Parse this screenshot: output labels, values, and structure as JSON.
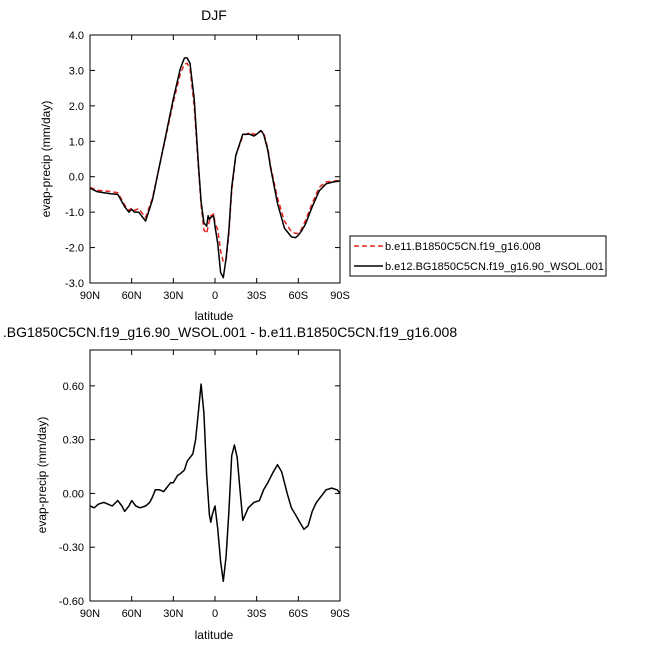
{
  "chart_data": [
    {
      "type": "line",
      "title": "DJF",
      "xlabel": "latitude",
      "ylabel": "evap-precip (mm/day)",
      "xlim": [
        90,
        -90
      ],
      "ylim": [
        -3.0,
        4.0
      ],
      "x_ticks": [
        90,
        60,
        30,
        0,
        -30,
        -60,
        -90
      ],
      "x_tick_labels": [
        "90N",
        "60N",
        "30N",
        "0",
        "30S",
        "60S",
        "90S"
      ],
      "y_ticks": [
        -3.0,
        -2.0,
        -1.0,
        0.0,
        1.0,
        2.0,
        3.0,
        4.0
      ],
      "y_tick_labels": [
        "-3.0",
        "-2.0",
        "-1.0",
        "0.0",
        "1.0",
        "2.0",
        "3.0",
        "4.0"
      ],
      "legend_position": "right",
      "series": [
        {
          "name": "b.e11.B1850C5CN.f19_g16.008",
          "color": "#e8231f",
          "dash": "dashed",
          "x": [
            90,
            85,
            80,
            75,
            70,
            65,
            62,
            60,
            58,
            55,
            52,
            50,
            45,
            40,
            35,
            30,
            25,
            22,
            20,
            18,
            15,
            12,
            10,
            8,
            6,
            5,
            4,
            3,
            1,
            0,
            -2,
            -4,
            -6,
            -8,
            -10,
            -12,
            -15,
            -20,
            -25,
            -28,
            -30,
            -33,
            -35,
            -38,
            -40,
            -45,
            -50,
            -55,
            -58,
            -60,
            -62,
            -65,
            -70,
            -75,
            -80,
            -85,
            -90
          ],
          "values": [
            -0.3,
            -0.38,
            -0.4,
            -0.42,
            -0.45,
            -0.8,
            -0.95,
            -0.88,
            -0.95,
            -0.9,
            -1.05,
            -1.15,
            -0.6,
            0.3,
            1.2,
            2.1,
            2.9,
            3.18,
            3.2,
            3.05,
            2.0,
            0.3,
            -0.8,
            -1.5,
            -1.6,
            -1.4,
            -1.25,
            -1.1,
            -1.05,
            -1.3,
            -1.5,
            -2.1,
            -2.4,
            -2.35,
            -1.6,
            -0.4,
            0.6,
            1.15,
            1.25,
            1.2,
            1.2,
            1.3,
            1.25,
            0.8,
            0.3,
            -0.6,
            -1.25,
            -1.55,
            -1.6,
            -1.6,
            -1.5,
            -1.25,
            -0.75,
            -0.3,
            -0.15,
            -0.12,
            -0.1
          ]
        },
        {
          "name": "b.e12.BG1850C5CN.f19_g16.90_WSOL.001",
          "color": "#000000",
          "dash": "solid",
          "x": [
            90,
            85,
            80,
            75,
            70,
            65,
            62,
            60,
            58,
            55,
            52,
            50,
            45,
            40,
            35,
            30,
            25,
            22,
            20,
            18,
            15,
            12,
            10,
            8,
            6,
            5,
            4,
            3,
            1,
            0,
            -2,
            -4,
            -6,
            -8,
            -10,
            -12,
            -15,
            -20,
            -25,
            -28,
            -30,
            -33,
            -35,
            -38,
            -40,
            -45,
            -50,
            -55,
            -58,
            -60,
            -62,
            -65,
            -70,
            -75,
            -80,
            -85,
            -90
          ],
          "values": [
            -0.32,
            -0.42,
            -0.45,
            -0.48,
            -0.5,
            -0.85,
            -1.0,
            -0.92,
            -1.0,
            -1.0,
            -1.15,
            -1.25,
            -0.65,
            0.3,
            1.25,
            2.2,
            3.05,
            3.35,
            3.35,
            3.2,
            2.2,
            0.4,
            -0.7,
            -1.3,
            -1.4,
            -1.1,
            -1.2,
            -1.15,
            -1.1,
            -1.4,
            -1.9,
            -2.7,
            -2.85,
            -2.3,
            -1.5,
            -0.3,
            0.6,
            1.2,
            1.2,
            1.15,
            1.2,
            1.3,
            1.2,
            0.75,
            0.25,
            -0.75,
            -1.45,
            -1.7,
            -1.72,
            -1.65,
            -1.55,
            -1.35,
            -0.85,
            -0.4,
            -0.2,
            -0.15,
            -0.12
          ]
        }
      ]
    },
    {
      "type": "line",
      "title": ".BG1850C5CN.f19_g16.90_WSOL.001 - b.e11.B1850C5CN.f19_g16.008",
      "xlabel": "latitude",
      "ylabel": "evap-precip (mm/day)",
      "xlim": [
        90,
        -90
      ],
      "ylim": [
        -0.6,
        0.8
      ],
      "x_ticks": [
        90,
        60,
        30,
        0,
        -30,
        -60,
        -90
      ],
      "x_tick_labels": [
        "90N",
        "60N",
        "30N",
        "0",
        "30S",
        "60S",
        "90S"
      ],
      "y_ticks": [
        -0.6,
        -0.3,
        0.0,
        0.3,
        0.6
      ],
      "y_tick_labels": [
        "-0.60",
        "-0.30",
        "0.00",
        "0.30",
        "0.60"
      ],
      "series": [
        {
          "color": "#000000",
          "dash": "solid",
          "x": [
            90,
            87,
            84,
            80,
            77,
            74,
            70,
            67,
            65,
            62,
            60,
            57,
            54,
            50,
            47,
            45,
            43,
            40,
            37,
            35,
            32,
            30,
            27,
            25,
            22,
            20,
            18,
            16,
            14,
            12,
            10,
            8,
            6,
            4,
            3,
            2,
            0,
            -2,
            -4,
            -6,
            -8,
            -10,
            -12,
            -14,
            -16,
            -18,
            -20,
            -24,
            -28,
            -32,
            -35,
            -38,
            -42,
            -45,
            -48,
            -52,
            -55,
            -58,
            -61,
            -64,
            -67,
            -70,
            -73,
            -76,
            -80,
            -84,
            -88,
            -90
          ],
          "values": [
            -0.07,
            -0.08,
            -0.06,
            -0.05,
            -0.06,
            -0.07,
            -0.04,
            -0.07,
            -0.1,
            -0.07,
            -0.04,
            -0.07,
            -0.08,
            -0.07,
            -0.05,
            -0.02,
            0.02,
            0.02,
            0.01,
            0.03,
            0.06,
            0.06,
            0.1,
            0.11,
            0.13,
            0.18,
            0.2,
            0.22,
            0.3,
            0.45,
            0.61,
            0.45,
            0.1,
            -0.12,
            -0.16,
            -0.12,
            -0.07,
            -0.2,
            -0.38,
            -0.49,
            -0.35,
            -0.1,
            0.21,
            0.27,
            0.2,
            0.02,
            -0.15,
            -0.08,
            -0.05,
            -0.04,
            0.02,
            0.06,
            0.12,
            0.16,
            0.12,
            0.0,
            -0.08,
            -0.12,
            -0.16,
            -0.2,
            -0.18,
            -0.1,
            -0.05,
            -0.02,
            0.02,
            0.03,
            0.02,
            0.0
          ]
        }
      ]
    }
  ]
}
